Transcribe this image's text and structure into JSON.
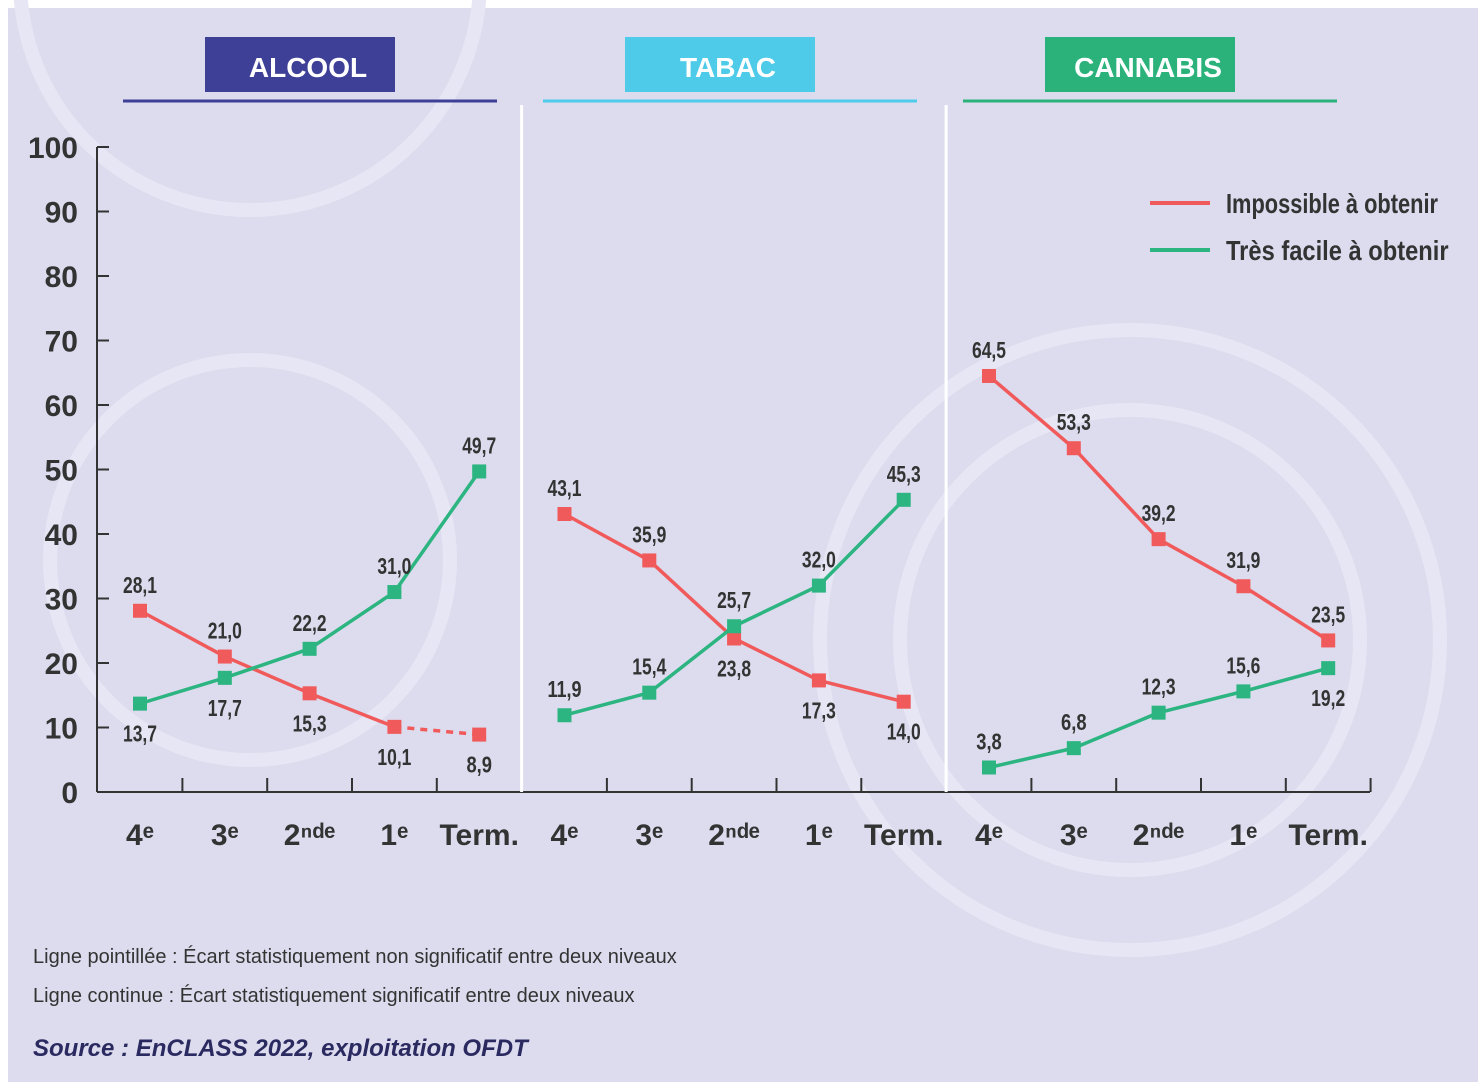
{
  "chart_data": {
    "type": "line",
    "ylim": [
      0,
      100
    ],
    "yticks": [
      0,
      10,
      20,
      30,
      40,
      50,
      60,
      70,
      80,
      90,
      100
    ],
    "series": [
      {
        "name": "Impossible à obtenir",
        "color": "#f05a5b"
      },
      {
        "name": "Très facile à obtenir",
        "color": "#2cb481"
      }
    ],
    "panels": [
      {
        "title": "ALCOOL",
        "color": "#3e3f96",
        "categories": [
          "4ᵉ",
          "3ᵉ",
          "2ⁿᵈᵉ",
          "1ᵉ",
          "Term."
        ],
        "values": [
          [
            28.1,
            21.0,
            15.3,
            10.1,
            8.9
          ],
          [
            13.7,
            17.7,
            22.2,
            31.0,
            49.7
          ]
        ],
        "value_labels": [
          [
            "28,1",
            "21,0",
            "15,3",
            "10,1",
            "8,9"
          ],
          [
            "13,7",
            "17,7",
            "22,2",
            "31,0",
            "49,7"
          ]
        ],
        "dashed_segments": [
          [
            3
          ],
          []
        ]
      },
      {
        "title": "TABAC",
        "color": "#4ecbe9",
        "categories": [
          "4ᵉ",
          "3ᵉ",
          "2ⁿᵈᵉ",
          "1ᵉ",
          "Term."
        ],
        "values": [
          [
            43.1,
            35.9,
            23.8,
            17.3,
            14.0
          ],
          [
            11.9,
            15.4,
            25.7,
            32.0,
            45.3
          ]
        ],
        "value_labels": [
          [
            "43,1",
            "35,9",
            "23,8",
            "17,3",
            "14,0"
          ],
          [
            "11,9",
            "15,4",
            "25,7",
            "32,0",
            "45,3"
          ]
        ],
        "dashed_segments": [
          [],
          []
        ]
      },
      {
        "title": "CANNABIS",
        "color": "#2bb27b",
        "categories": [
          "4ᵉ",
          "3ᵉ",
          "2ⁿᵈᵉ",
          "1ᵉ",
          "Term."
        ],
        "values": [
          [
            64.5,
            53.3,
            39.2,
            31.9,
            23.5
          ],
          [
            3.8,
            6.8,
            12.3,
            15.6,
            19.2
          ]
        ],
        "value_labels": [
          [
            "64,5",
            "53,3",
            "39,2",
            "31,9",
            "23,5"
          ],
          [
            "3,8",
            "6,8",
            "12,3",
            "15,6",
            "19,2"
          ]
        ],
        "dashed_segments": [
          [],
          []
        ]
      }
    ],
    "notes": [
      "Ligne pointillée : Écart statistiquement non significatif entre deux niveaux",
      "Ligne continue : Écart statistiquement significatif entre deux niveaux"
    ],
    "source": "Source : EnCLASS 2022, exploitation OFDT"
  }
}
